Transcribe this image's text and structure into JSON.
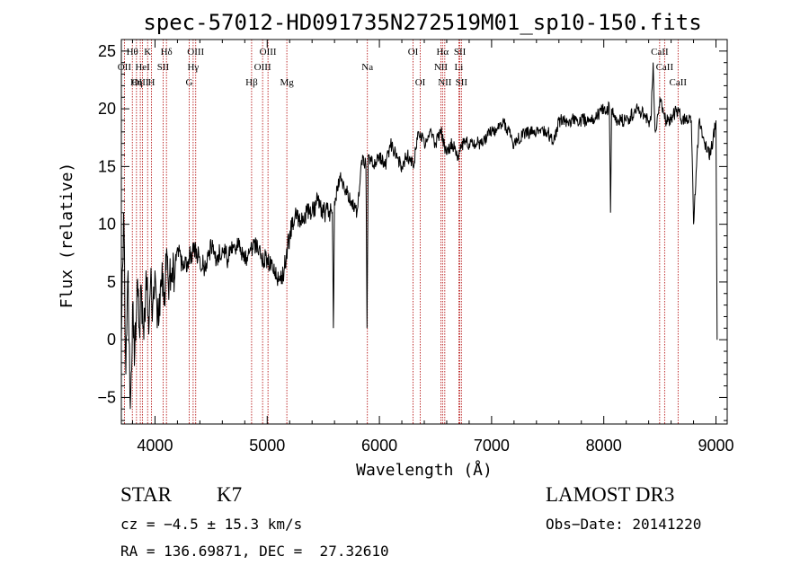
{
  "chart_data": {
    "type": "line",
    "title": "spec-57012-HD091735N272519M01_sp10-150.fits",
    "xlabel": "Wavelength (Å)",
    "ylabel": "Flux (relative)",
    "xlim": [
      3700,
      9100
    ],
    "ylim": [
      -7.3,
      26
    ],
    "xticks": [
      4000,
      5000,
      6000,
      7000,
      8000,
      9000
    ],
    "yticks": [
      -5,
      0,
      5,
      10,
      15,
      20,
      25
    ],
    "xtick_labels": [
      "4000",
      "5000",
      "6000",
      "7000",
      "8000",
      "9000"
    ],
    "ytick_labels": [
      "−5",
      "0",
      "5",
      "10",
      "15",
      "20",
      "25"
    ],
    "series": [
      {
        "name": "spectrum",
        "x": [
          3700,
          3720,
          3740,
          3760,
          3780,
          3800,
          3820,
          3840,
          3860,
          3880,
          3900,
          3920,
          3940,
          3960,
          3980,
          4000,
          4020,
          4040,
          4060,
          4080,
          4100,
          4150,
          4200,
          4250,
          4300,
          4350,
          4400,
          4450,
          4500,
          4550,
          4600,
          4650,
          4700,
          4750,
          4800,
          4850,
          4900,
          4950,
          5000,
          5050,
          5100,
          5150,
          5200,
          5250,
          5300,
          5350,
          5400,
          5450,
          5500,
          5550,
          5580,
          5590,
          5600,
          5650,
          5700,
          5750,
          5800,
          5850,
          5880,
          5890,
          5900,
          5950,
          6000,
          6050,
          6100,
          6150,
          6200,
          6250,
          6300,
          6350,
          6400,
          6450,
          6500,
          6550,
          6600,
          6650,
          6700,
          6750,
          6800,
          6900,
          7000,
          7100,
          7200,
          7300,
          7400,
          7500,
          7550,
          7600,
          7700,
          7800,
          7900,
          8000,
          8050,
          8060,
          8070,
          8100,
          8200,
          8300,
          8400,
          8420,
          8440,
          8450,
          8460,
          8500,
          8550,
          8600,
          8650,
          8700,
          8750,
          8780,
          8800,
          8850,
          8900,
          8950,
          9000,
          9010
        ],
        "y": [
          0,
          11,
          -3,
          6,
          -6,
          3,
          -1,
          5,
          1,
          4,
          0,
          6,
          2,
          5,
          3,
          6,
          1,
          4,
          5,
          3,
          6,
          5,
          8,
          6,
          7,
          8,
          7,
          6,
          8,
          7,
          8,
          7,
          8,
          8,
          7,
          8,
          8,
          7,
          7,
          6,
          5,
          6,
          9,
          11,
          10,
          11,
          11,
          12,
          11,
          11,
          11,
          1,
          12,
          14,
          13,
          12,
          11,
          16,
          15,
          1,
          16,
          15,
          16,
          15,
          17,
          16,
          15,
          16,
          15,
          18,
          17,
          18,
          17,
          18,
          16,
          17,
          16,
          17,
          17,
          17,
          18,
          19,
          17,
          18,
          18,
          18,
          17,
          19,
          19,
          19,
          19,
          20,
          20,
          11,
          20,
          19,
          19,
          20,
          19,
          19,
          24,
          20,
          18,
          21,
          19,
          19,
          20,
          19,
          19,
          19,
          10,
          19,
          17,
          16,
          19,
          0
        ]
      }
    ],
    "lines": [
      {
        "name": "Hθ",
        "wave": 3798,
        "row": 1,
        "pos": "top"
      },
      {
        "name": "K",
        "wave": 3934,
        "row": 1,
        "pos": "top"
      },
      {
        "name": "Hδ",
        "wave": 4102,
        "row": 1,
        "pos": "top"
      },
      {
        "name": "OIII",
        "wave": 4363,
        "row": 1,
        "pos": "top"
      },
      {
        "name": "OIII",
        "wave": 5007,
        "row": 1,
        "pos": "top"
      },
      {
        "name": "OI",
        "wave": 6300,
        "row": 1,
        "pos": "top"
      },
      {
        "name": "Hα",
        "wave": 6563,
        "row": 1,
        "pos": "top"
      },
      {
        "name": "SII",
        "wave": 6717,
        "row": 1,
        "pos": "top"
      },
      {
        "name": "CaII",
        "wave": 8498,
        "row": 1,
        "pos": "top"
      },
      {
        "name": "OII",
        "wave": 3727,
        "row": 2,
        "pos": "top"
      },
      {
        "name": "HeI",
        "wave": 3889,
        "row": 2,
        "pos": "top"
      },
      {
        "name": "SII",
        "wave": 4072,
        "row": 2,
        "pos": "top"
      },
      {
        "name": "Hγ",
        "wave": 4340,
        "row": 2,
        "pos": "top"
      },
      {
        "name": "OIII",
        "wave": 4959,
        "row": 2,
        "pos": "top"
      },
      {
        "name": "Na",
        "wave": 5893,
        "row": 2,
        "pos": "top"
      },
      {
        "name": "NII",
        "wave": 6548,
        "row": 2,
        "pos": "top"
      },
      {
        "name": "Li",
        "wave": 6708,
        "row": 2,
        "pos": "top"
      },
      {
        "name": "CaII",
        "wave": 8542,
        "row": 2,
        "pos": "top"
      },
      {
        "name": "OIII",
        "wave": 3869,
        "row": 3,
        "pos": "top"
      },
      {
        "name": "Hη",
        "wave": 3835,
        "row": 3,
        "pos": "top"
      },
      {
        "name": "H",
        "wave": 3968,
        "row": 3,
        "pos": "top"
      },
      {
        "name": "G",
        "wave": 4305,
        "row": 3,
        "pos": "top"
      },
      {
        "name": "Hβ",
        "wave": 4861,
        "row": 3,
        "pos": "top"
      },
      {
        "name": "Mg",
        "wave": 5175,
        "row": 3,
        "pos": "top"
      },
      {
        "name": "OI",
        "wave": 6364,
        "row": 3,
        "pos": "top"
      },
      {
        "name": "NII",
        "wave": 6583,
        "row": 3,
        "pos": "top"
      },
      {
        "name": "SII",
        "wave": 6731,
        "row": 3,
        "pos": "top"
      },
      {
        "name": "CaII",
        "wave": 8662,
        "row": 3,
        "pos": "top"
      }
    ]
  },
  "info": {
    "class_label": "STAR",
    "subclass": "K7",
    "survey": "LAMOST DR3",
    "cz": "cz = −4.5 ± 15.3 km/s",
    "obs_date": "Obs−Date: 20141220",
    "coords": "RA = 136.69871, DEC =  27.32610"
  }
}
